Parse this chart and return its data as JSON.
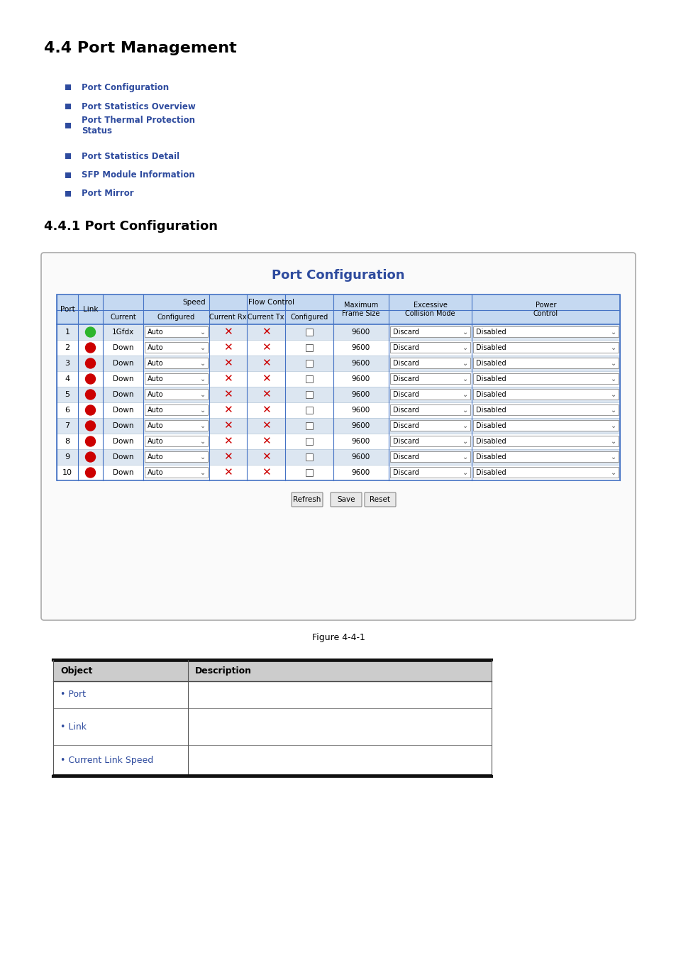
{
  "title": "4.4 Port Management",
  "section_title": "4.4.1 Port Configuration",
  "bg_color": "#ffffff",
  "link_items": [
    "Port Configuration",
    "Port Statistics Overview",
    "Port Thermal Protection\nStatus",
    "Port Statistics Detail",
    "SFP Module Information",
    "Port Mirror"
  ],
  "link_color": "#2e4b9e",
  "bullet_color": "#2e4b9e",
  "port_config_title": "Port Configuration",
  "port_config_title_color": "#2e4b9e",
  "table_header_bg": "#c5d9f1",
  "table_border_color": "#4472c4",
  "rows": [
    {
      "port": "1",
      "link_color": "#2db52d",
      "current": "1Gfdx",
      "configured": "Auto"
    },
    {
      "port": "2",
      "link_color": "#cc0000",
      "current": "Down",
      "configured": "Auto"
    },
    {
      "port": "3",
      "link_color": "#cc0000",
      "current": "Down",
      "configured": "Auto"
    },
    {
      "port": "4",
      "link_color": "#cc0000",
      "current": "Down",
      "configured": "Auto"
    },
    {
      "port": "5",
      "link_color": "#cc0000",
      "current": "Down",
      "configured": "Auto"
    },
    {
      "port": "6",
      "link_color": "#cc0000",
      "current": "Down",
      "configured": "Auto"
    },
    {
      "port": "7",
      "link_color": "#cc0000",
      "current": "Down",
      "configured": "Auto"
    },
    {
      "port": "8",
      "link_color": "#cc0000",
      "current": "Down",
      "configured": "Auto"
    },
    {
      "port": "9",
      "link_color": "#cc0000",
      "current": "Down",
      "configured": "Auto"
    },
    {
      "port": "10",
      "link_color": "#cc0000",
      "current": "Down",
      "configured": "Auto"
    }
  ],
  "figure_caption": "Figure 4-4-1",
  "obj_link_color": "#2e4b9e",
  "obj_header_bg": "#cccccc"
}
